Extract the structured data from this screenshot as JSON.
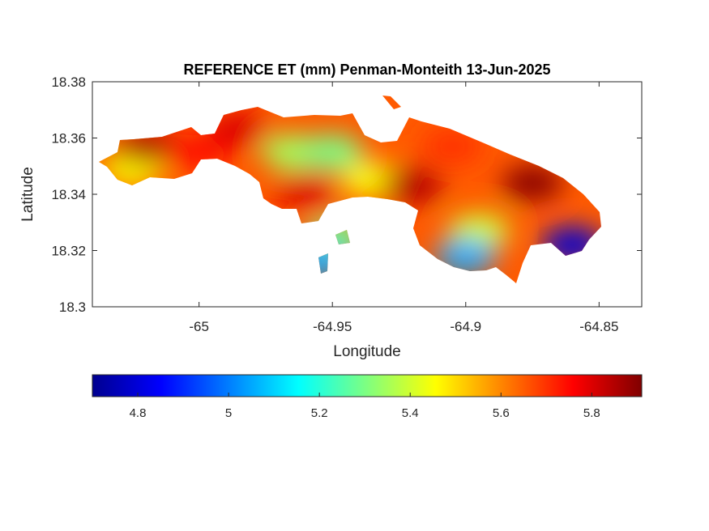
{
  "chart_data": {
    "type": "heatmap",
    "title": "REFERENCE ET (mm) Penman-Monteith 13-Jun-2025",
    "xlabel": "Longitude",
    "ylabel": "Latitude",
    "xlim": [
      -65.04,
      -64.834
    ],
    "ylim": [
      18.3,
      18.38
    ],
    "xticks": [
      -65,
      -64.95,
      -64.9,
      -64.85
    ],
    "xtick_labels": [
      "-65",
      "-64.95",
      "-64.9",
      "-64.85"
    ],
    "yticks": [
      18.3,
      18.32,
      18.34,
      18.36,
      18.38
    ],
    "ytick_labels": [
      "18.3",
      "18.32",
      "18.34",
      "18.36",
      "18.38"
    ],
    "colormap": "jet",
    "colorbar": {
      "orientation": "horizontal",
      "position": "bottom",
      "range": [
        4.7,
        5.91
      ],
      "ticks": [
        4.8,
        5.0,
        5.2,
        5.4,
        5.6,
        5.8
      ],
      "tick_labels": [
        "4.8",
        "5",
        "5.2",
        "5.4",
        "5.6",
        "5.8"
      ]
    },
    "value_regions": [
      {
        "lon": -65.025,
        "lat": 18.349,
        "value": 5.45
      },
      {
        "lon": -65.02,
        "lat": 18.357,
        "value": 5.85
      },
      {
        "lon": -65.0,
        "lat": 18.355,
        "value": 5.75
      },
      {
        "lon": -64.985,
        "lat": 18.363,
        "value": 5.8
      },
      {
        "lon": -64.965,
        "lat": 18.355,
        "value": 5.35
      },
      {
        "lon": -64.95,
        "lat": 18.355,
        "value": 5.3
      },
      {
        "lon": -64.96,
        "lat": 18.341,
        "value": 5.8
      },
      {
        "lon": -64.935,
        "lat": 18.345,
        "value": 5.45
      },
      {
        "lon": -64.92,
        "lat": 18.343,
        "value": 5.85
      },
      {
        "lon": -64.905,
        "lat": 18.357,
        "value": 5.7
      },
      {
        "lon": -64.875,
        "lat": 18.344,
        "value": 5.9
      },
      {
        "lon": -64.895,
        "lat": 18.327,
        "value": 5.4
      },
      {
        "lon": -64.9,
        "lat": 18.318,
        "value": 5.05
      },
      {
        "lon": -64.86,
        "lat": 18.322,
        "value": 4.8
      },
      {
        "lon": -64.948,
        "lat": 18.325,
        "value": 5.3
      },
      {
        "lon": -64.955,
        "lat": 18.316,
        "value": 5.05
      }
    ]
  }
}
